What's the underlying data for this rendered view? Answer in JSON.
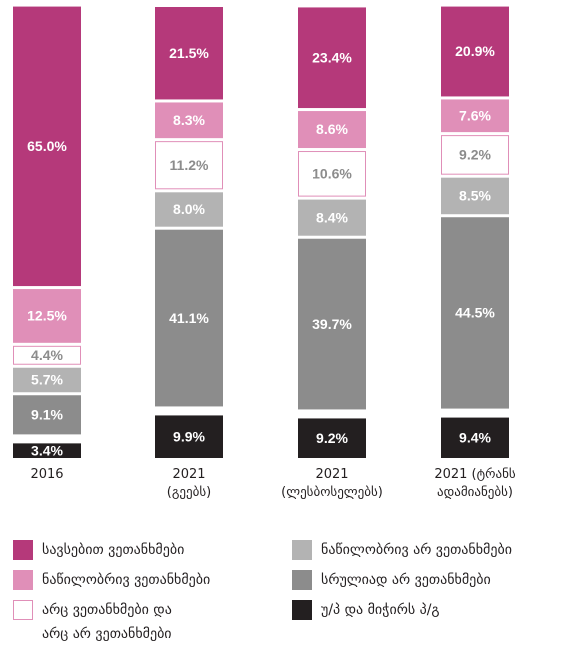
{
  "chart_data": {
    "type": "stacked_bar",
    "categories": [
      "2016",
      "2021\n(გეებს)",
      "2021\n(ლესბოსელებს)",
      "2021 (ტრანს\nადამიანებს)"
    ],
    "series": [
      {
        "name": "სავსებით ვეთანხმები",
        "color": "#b5397a",
        "label_color": "#ffffff",
        "values": [
          65.0,
          21.5,
          23.4,
          20.9
        ],
        "value_labels": [
          "65.0%",
          "21.5%",
          "23.4%",
          "20.9%"
        ]
      },
      {
        "name": "ნაწილობრივ ვეთანხმები",
        "color": "#e08fb8",
        "label_color": "#ffffff",
        "values": [
          12.5,
          8.3,
          8.6,
          7.6
        ],
        "value_labels": [
          "12.5%",
          "8.3%",
          "8.6%",
          "7.6%"
        ]
      },
      {
        "name": "არც ვეთანხმები და\nარც არ ვეთანხმები",
        "color": "#ffffff",
        "edgecolor": "#e08fb8",
        "label_color": "#8c8c8c",
        "values": [
          4.4,
          11.2,
          10.6,
          9.2
        ],
        "value_labels": [
          "4.4%",
          "11.2%",
          "10.6%",
          "9.2%"
        ]
      },
      {
        "name": "ნაწილობრივ არ ვეთანხმები",
        "color": "#b3b3b3",
        "label_color": "#ffffff",
        "values": [
          5.7,
          8.0,
          8.4,
          8.5
        ],
        "value_labels": [
          "5.7%",
          "8.0%",
          "8.4%",
          "8.5%"
        ]
      },
      {
        "name": "სრულიად არ ვეთანხმები",
        "color": "#8c8c8c",
        "label_color": "#ffffff",
        "values": [
          9.1,
          41.1,
          39.7,
          44.5
        ],
        "value_labels": [
          "9.1%",
          "41.1%",
          "39.7%",
          "44.5%"
        ]
      },
      {
        "name": "უ/პ და მიჭირს პ/გ",
        "color": "#231f20",
        "label_color": "#ffffff",
        "values": [
          3.4,
          9.9,
          9.2,
          9.4
        ],
        "value_labels": [
          "3.4%",
          "9.9%",
          "9.2%",
          "9.4%"
        ]
      }
    ]
  }
}
